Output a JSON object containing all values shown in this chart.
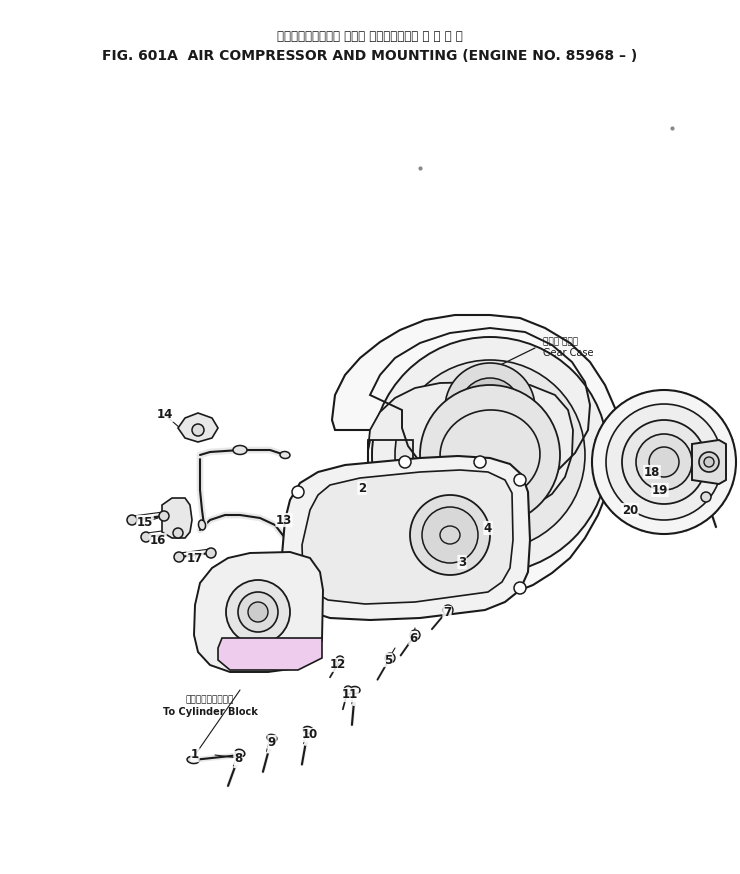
{
  "title_jp": "エアーコンプレッサ および マウンティング 適 用 号 機",
  "title_en": "FIG. 601A  AIR COMPRESSOR AND MOUNTING (ENGINE NO. 85968 – )",
  "bg_color": "#ffffff",
  "lc": "#1a1a1a",
  "fig_width": 7.4,
  "fig_height": 8.74,
  "dpi": 100,
  "gear_case_jp": "ギヤー ケース",
  "gear_case_en": "Gear Case",
  "cylinder_block_jp": "シリンダブロックへ",
  "cylinder_block_en": "To Cylinder Block"
}
